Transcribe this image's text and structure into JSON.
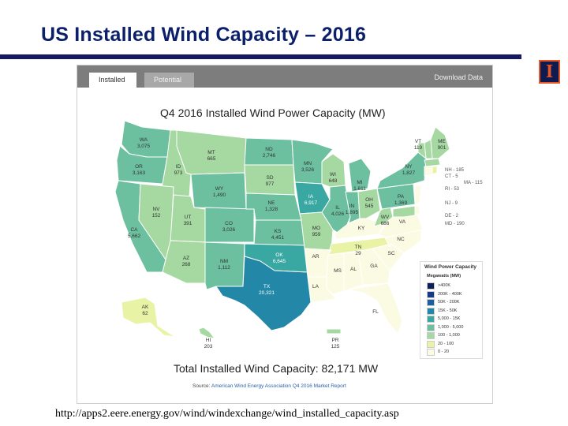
{
  "slide": {
    "title": "US Installed Wind Capacity – 2016",
    "url": "http://apps2.eere.energy.gov/wind/windexchange/wind_installed_capacity.asp"
  },
  "logo": {
    "glyph": "I"
  },
  "viewer": {
    "tabs": [
      {
        "label": "Installed",
        "active": true
      },
      {
        "label": "Potential",
        "active": false
      }
    ],
    "download_label": "Download Data"
  },
  "map": {
    "title": "Q4 2016 Installed Wind Power Capacity (MW)",
    "total": "Total Installed Wind Capacity: 82,171 MW",
    "source_prefix": "Source:",
    "source_text": "American Wind Energy Association Q4 2016 Market Report",
    "states": [
      {
        "name": "WA",
        "value": "3,075"
      },
      {
        "name": "OR",
        "value": "3,163"
      },
      {
        "name": "CA",
        "value": "5,662"
      },
      {
        "name": "ID",
        "value": "973"
      },
      {
        "name": "NV",
        "value": "152"
      },
      {
        "name": "MT",
        "value": "665"
      },
      {
        "name": "WY",
        "value": "1,490"
      },
      {
        "name": "UT",
        "value": "391"
      },
      {
        "name": "AZ",
        "value": "268"
      },
      {
        "name": "CO",
        "value": "3,026"
      },
      {
        "name": "NM",
        "value": "1,112"
      },
      {
        "name": "ND",
        "value": "2,746"
      },
      {
        "name": "SD",
        "value": "977"
      },
      {
        "name": "NE",
        "value": "1,328"
      },
      {
        "name": "KS",
        "value": "4,451"
      },
      {
        "name": "OK",
        "value": "6,645"
      },
      {
        "name": "TX",
        "value": "20,321"
      },
      {
        "name": "MN",
        "value": "3,526"
      },
      {
        "name": "IA",
        "value": "6,917"
      },
      {
        "name": "MO",
        "value": "959"
      },
      {
        "name": "WI",
        "value": "648"
      },
      {
        "name": "IL",
        "value": "4,026"
      },
      {
        "name": "MI",
        "value": "1,611"
      },
      {
        "name": "IN",
        "value": "1,895"
      },
      {
        "name": "OH",
        "value": "545"
      },
      {
        "name": "PA",
        "value": "1,369"
      },
      {
        "name": "NY",
        "value": "1,827"
      },
      {
        "name": "VT",
        "value": "119"
      },
      {
        "name": "ME",
        "value": "901"
      },
      {
        "name": "WV",
        "value": "686"
      },
      {
        "name": "TN",
        "value": "29"
      },
      {
        "name": "AK",
        "value": "62"
      },
      {
        "name": "HI",
        "value": "203"
      },
      {
        "name": "PR",
        "value": "125"
      },
      {
        "name": "KY",
        "value": ""
      },
      {
        "name": "VA",
        "value": ""
      },
      {
        "name": "AR",
        "value": ""
      },
      {
        "name": "LA",
        "value": ""
      },
      {
        "name": "MS",
        "value": ""
      },
      {
        "name": "AL",
        "value": ""
      },
      {
        "name": "GA",
        "value": ""
      },
      {
        "name": "FL",
        "value": ""
      },
      {
        "name": "SC",
        "value": ""
      },
      {
        "name": "NC",
        "value": ""
      }
    ],
    "small_states": [
      "NH - 185",
      "CT - 5",
      "MA - 115",
      "RI - 53",
      "NJ - 9",
      "DE - 2",
      "MD - 190"
    ],
    "legend": {
      "title": "Wind Power Capacity",
      "subtitle": "Megawatts (MW)",
      "items": [
        {
          "label": ">400K",
          "color": "#0d1f5c"
        },
        {
          "label": "200K - 400K",
          "color": "#163a86"
        },
        {
          "label": "50K - 200K",
          "color": "#1e5fa0"
        },
        {
          "label": "15K - 50K",
          "color": "#2388a8"
        },
        {
          "label": "5,000 - 15K",
          "color": "#3aa8a2"
        },
        {
          "label": "1,000 - 5,000",
          "color": "#6cc0a0"
        },
        {
          "label": "100 - 1,000",
          "color": "#a6d9a2"
        },
        {
          "label": "20 - 100",
          "color": "#e9f3a6"
        },
        {
          "label": "0 - 20",
          "color": "#fbfbe3"
        }
      ]
    }
  }
}
